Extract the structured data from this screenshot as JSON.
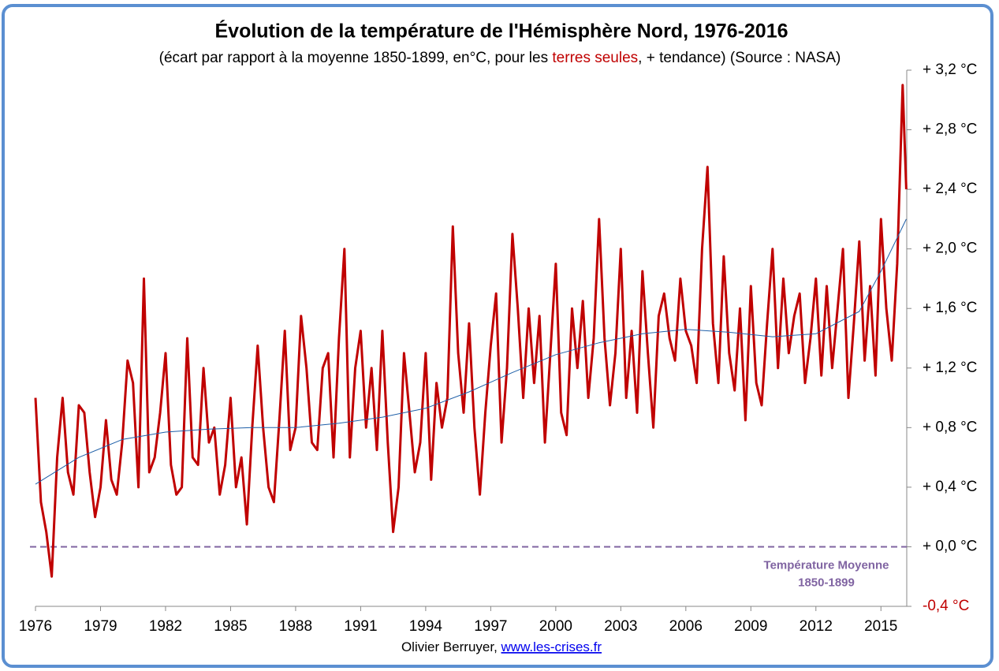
{
  "chart_data": {
    "type": "line",
    "title": "Évolution de la température de l'Hémisphère Nord, 1976-2016",
    "subtitle": [
      "(écart par rapport à la moyenne 1850-1899,  en°C, pour les ",
      "terres seules",
      ", + tendance) (Source : NASA)"
    ],
    "subtitle_colors": [
      "#000000",
      "#c00000",
      "#000000"
    ],
    "xlim": [
      1976,
      2016.3
    ],
    "xticks": [
      1976,
      1979,
      1982,
      1985,
      1988,
      1991,
      1994,
      1997,
      2000,
      2003,
      2006,
      2009,
      2012,
      2015
    ],
    "ylim": [
      -0.4,
      3.2
    ],
    "yticks": [
      {
        "value": -0.4,
        "label": "-0,4 °C",
        "color": "#c00000"
      },
      {
        "value": 0,
        "label": "+ 0,0 °C"
      },
      {
        "value": 0.4,
        "label": "+ 0,4 °C"
      },
      {
        "value": 0.8,
        "label": "+ 0,8 °C"
      },
      {
        "value": 1.2,
        "label": "+ 1,2 °C"
      },
      {
        "value": 1.6,
        "label": "+ 1,6 °C"
      },
      {
        "value": 2.0,
        "label": "+ 2,0 °C"
      },
      {
        "value": 2.4,
        "label": "+ 2,4 °C"
      },
      {
        "value": 2.8,
        "label": "+ 2,8 °C"
      },
      {
        "value": 3.2,
        "label": "+ 3,2 °C"
      }
    ],
    "reference_line": {
      "value": 0,
      "color": "#8064a2",
      "dashed": true
    },
    "annotation": [
      "Température Moyenne",
      "1850-1899"
    ],
    "series": [
      {
        "color": "#c00000",
        "width": 3,
        "x": [
          1976,
          1976.25,
          1976.5,
          1976.75,
          1977,
          1977.25,
          1977.5,
          1977.75,
          1978,
          1978.25,
          1978.5,
          1978.75,
          1979,
          1979.25,
          1979.5,
          1979.75,
          1980,
          1980.25,
          1980.5,
          1980.75,
          1981,
          1981.25,
          1981.5,
          1981.75,
          1982,
          1982.25,
          1982.5,
          1982.75,
          1983,
          1983.25,
          1983.5,
          1983.75,
          1984,
          1984.25,
          1984.5,
          1984.75,
          1985,
          1985.25,
          1985.5,
          1985.75,
          1986,
          1986.25,
          1986.5,
          1986.75,
          1987,
          1987.25,
          1987.5,
          1987.75,
          1988,
          1988.25,
          1988.5,
          1988.75,
          1989,
          1989.25,
          1989.5,
          1989.75,
          1990,
          1990.25,
          1990.5,
          1990.75,
          1991,
          1991.25,
          1991.5,
          1991.75,
          1992,
          1992.25,
          1992.5,
          1992.75,
          1993,
          1993.25,
          1993.5,
          1993.75,
          1994,
          1994.25,
          1994.5,
          1994.75,
          1995,
          1995.25,
          1995.5,
          1995.75,
          1996,
          1996.25,
          1996.5,
          1996.75,
          1997,
          1997.25,
          1997.5,
          1997.75,
          1998,
          1998.25,
          1998.5,
          1998.75,
          1999,
          1999.25,
          1999.5,
          1999.75,
          2000,
          2000.25,
          2000.5,
          2000.75,
          2001,
          2001.25,
          2001.5,
          2001.75,
          2002,
          2002.25,
          2002.5,
          2002.75,
          2003,
          2003.25,
          2003.5,
          2003.75,
          2004,
          2004.25,
          2004.5,
          2004.75,
          2005,
          2005.25,
          2005.5,
          2005.75,
          2006,
          2006.25,
          2006.5,
          2006.75,
          2007,
          2007.25,
          2007.5,
          2007.75,
          2008,
          2008.25,
          2008.5,
          2008.75,
          2009,
          2009.25,
          2009.5,
          2009.75,
          2010,
          2010.25,
          2010.5,
          2010.75,
          2011,
          2011.25,
          2011.5,
          2011.75,
          2012,
          2012.25,
          2012.5,
          2012.75,
          2013,
          2013.25,
          2013.5,
          2013.75,
          2014,
          2014.25,
          2014.5,
          2014.75,
          2015,
          2015.25,
          2015.5,
          2015.75,
          2016,
          2016.17
        ],
        "values": [
          1.0,
          0.3,
          0.1,
          -0.2,
          0.6,
          1.0,
          0.5,
          0.35,
          0.95,
          0.9,
          0.5,
          0.2,
          0.4,
          0.85,
          0.45,
          0.35,
          0.7,
          1.25,
          1.1,
          0.4,
          1.8,
          0.5,
          0.6,
          0.9,
          1.3,
          0.55,
          0.35,
          0.4,
          1.4,
          0.6,
          0.55,
          1.2,
          0.7,
          0.8,
          0.35,
          0.55,
          1.0,
          0.4,
          0.6,
          0.15,
          0.8,
          1.35,
          0.8,
          0.4,
          0.3,
          0.85,
          1.45,
          0.65,
          0.8,
          1.55,
          1.2,
          0.7,
          0.65,
          1.2,
          1.3,
          0.6,
          1.4,
          2.0,
          0.6,
          1.2,
          1.45,
          0.8,
          1.2,
          0.65,
          1.45,
          0.7,
          0.1,
          0.4,
          1.3,
          0.9,
          0.5,
          0.7,
          1.3,
          0.45,
          1.1,
          0.8,
          1.0,
          2.15,
          1.3,
          0.9,
          1.5,
          0.8,
          0.35,
          0.9,
          1.35,
          1.7,
          0.7,
          1.2,
          2.1,
          1.6,
          1.0,
          1.6,
          1.1,
          1.55,
          0.7,
          1.3,
          1.9,
          0.9,
          0.75,
          1.6,
          1.2,
          1.65,
          1.0,
          1.4,
          2.2,
          1.4,
          0.95,
          1.3,
          2.0,
          1.0,
          1.45,
          0.9,
          1.85,
          1.3,
          0.8,
          1.55,
          1.7,
          1.4,
          1.25,
          1.8,
          1.45,
          1.35,
          1.1,
          2.0,
          2.55,
          1.5,
          1.1,
          1.95,
          1.3,
          1.05,
          1.6,
          0.85,
          1.75,
          1.1,
          0.95,
          1.5,
          2.0,
          1.2,
          1.8,
          1.3,
          1.55,
          1.7,
          1.1,
          1.4,
          1.8,
          1.15,
          1.75,
          1.2,
          1.6,
          2.0,
          1.0,
          1.5,
          2.05,
          1.25,
          1.75,
          1.15,
          2.2,
          1.6,
          1.25,
          1.9,
          3.1,
          2.4
        ]
      },
      {
        "color": "#1f5fa8",
        "width": 1,
        "x": [
          1976,
          1978,
          1980,
          1982,
          1984,
          1986,
          1988,
          1990,
          1992,
          1994,
          1996,
          1998,
          2000,
          2002,
          2004,
          2006,
          2008,
          2010,
          2012,
          2014,
          2015,
          2016.17
        ],
        "values": [
          0.42,
          0.6,
          0.72,
          0.77,
          0.79,
          0.8,
          0.8,
          0.83,
          0.87,
          0.93,
          1.04,
          1.17,
          1.29,
          1.37,
          1.43,
          1.46,
          1.44,
          1.41,
          1.43,
          1.58,
          1.85,
          2.2
        ]
      }
    ],
    "footer": [
      "Olivier Berruyer, ",
      "www.les-crises.fr"
    ]
  }
}
